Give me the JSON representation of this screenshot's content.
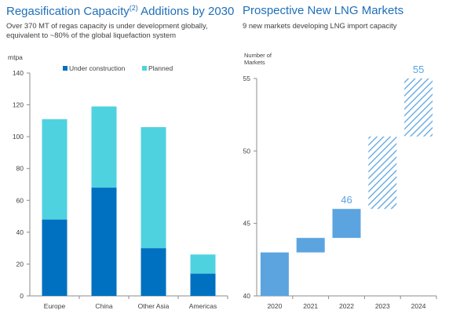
{
  "left_panel": {
    "title": "Regasification Capacity",
    "title_superscript": "(2)",
    "title_suffix": " Additions by 2030",
    "subtitle_line1": "Over 370 MT of regas capacity is under development globally,",
    "subtitle_line2": "equivalent to ~80% of the global liquefaction system"
  },
  "right_panel": {
    "title": "Prospective New LNG Markets",
    "subtitle": "9 new markets developing LNG import capacity"
  },
  "chart_data": [
    {
      "type": "bar",
      "stacked": true,
      "ylabel": "mtpa",
      "ylim": [
        0,
        140
      ],
      "yticks": [
        0,
        20,
        40,
        60,
        80,
        100,
        120,
        140
      ],
      "categories": [
        "Europe",
        "China",
        "Other Asia",
        "Americas"
      ],
      "series": [
        {
          "name": "Under construction",
          "color": "#0070c0",
          "values": [
            48,
            68,
            30,
            14
          ]
        },
        {
          "name": "Planned",
          "color": "#4fd2e0",
          "values": [
            63,
            51,
            76,
            12
          ]
        }
      ],
      "legend_position": "top-center",
      "grid": false
    },
    {
      "type": "waterfall",
      "ylabel_line1": "Number of",
      "ylabel_line2": "Markets",
      "ylim": [
        40,
        55
      ],
      "yticks": [
        40,
        45,
        50,
        55
      ],
      "categories": [
        "2020",
        "2021",
        "2022",
        "2023",
        "2024"
      ],
      "bars": [
        {
          "from": 40,
          "to": 43,
          "style": "solid"
        },
        {
          "from": 43,
          "to": 44,
          "style": "solid"
        },
        {
          "from": 44,
          "to": 46,
          "style": "solid"
        },
        {
          "from": 46,
          "to": 51,
          "style": "hatched"
        },
        {
          "from": 51,
          "to": 55,
          "style": "hatched"
        }
      ],
      "labels": [
        {
          "category": "2022",
          "value": 46
        },
        {
          "category": "2024",
          "value": 55
        }
      ],
      "colors": {
        "solid": "#5ba4e0",
        "hatched": "#5ba4e0",
        "label": "#5ba4e0"
      },
      "grid": false
    }
  ]
}
